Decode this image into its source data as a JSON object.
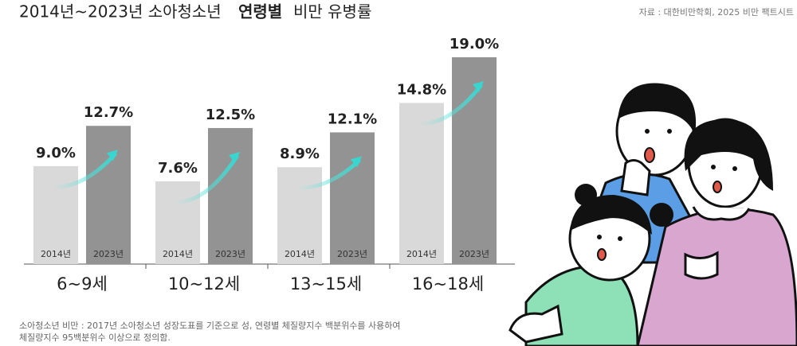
{
  "header": {
    "title_parts": [
      "2014년~2023년 소아청소년",
      "연령별",
      "비만 유병률"
    ],
    "source": "자료 : 대한비만학회, 2025 비만 팩트시트"
  },
  "chart_data": {
    "type": "bar",
    "categories": [
      "6~9세",
      "10~12세",
      "13~15세",
      "16~18세"
    ],
    "series": [
      {
        "name": "2014년",
        "color": "#d9d9d9",
        "values": [
          9.0,
          7.6,
          8.9,
          14.8
        ],
        "value_labels": [
          "9.0%",
          "7.6%",
          "8.9%",
          "14.8%"
        ]
      },
      {
        "name": "2023년",
        "color": "#939393",
        "values": [
          12.7,
          12.5,
          12.1,
          19.0
        ],
        "value_labels": [
          "12.7%",
          "12.5%",
          "12.1%",
          "19.0%"
        ]
      }
    ]
  },
  "footnote": [
    "소아청소년 비만 : 2017년 소아청소년 성장도표를 기준으로 성, 연령별 체질량지수 백분위수를 사용하여",
    "체질량지수 95백분위수 이상으로 정의함."
  ]
}
